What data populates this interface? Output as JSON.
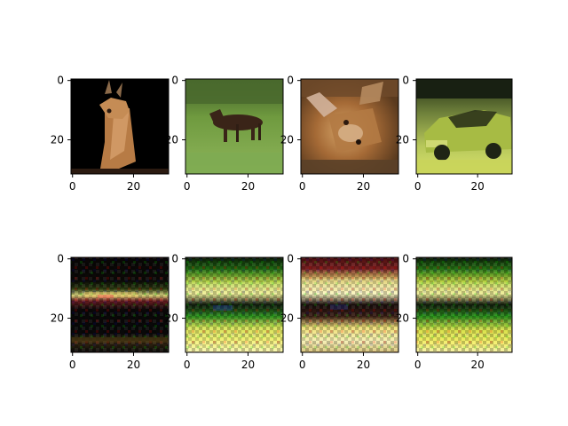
{
  "chart_data": [
    {
      "type": "heatmap",
      "panel": "top-1",
      "subject": "deer on black background",
      "xticks": [
        0,
        20
      ],
      "yticks": [
        0,
        20
      ],
      "xlim": [
        -0.5,
        31.5
      ],
      "ylim": [
        31.5,
        -0.5
      ],
      "grid": false
    },
    {
      "type": "heatmap",
      "panel": "top-2",
      "subject": "horse on grass",
      "xticks": [
        0,
        20
      ],
      "yticks": [
        0,
        20
      ],
      "xlim": [
        -0.5,
        31.5
      ],
      "ylim": [
        31.5,
        -0.5
      ],
      "grid": false
    },
    {
      "type": "heatmap",
      "panel": "top-3",
      "subject": "deer fawn close-up",
      "xticks": [
        0,
        20
      ],
      "yticks": [
        0,
        20
      ],
      "xlim": [
        -0.5,
        31.5
      ],
      "ylim": [
        31.5,
        -0.5
      ],
      "grid": false
    },
    {
      "type": "heatmap",
      "panel": "top-4",
      "subject": "green car",
      "xticks": [
        0,
        20
      ],
      "yticks": [
        0,
        20
      ],
      "xlim": [
        -0.5,
        31.5
      ],
      "ylim": [
        31.5,
        -0.5
      ],
      "grid": false
    },
    {
      "type": "heatmap",
      "panel": "bottom-1",
      "subject": "generated noise pattern (dark)",
      "xticks": [
        0,
        20
      ],
      "yticks": [
        0,
        20
      ],
      "xlim": [
        -0.5,
        31.5
      ],
      "ylim": [
        31.5,
        -0.5
      ],
      "grid": false
    },
    {
      "type": "heatmap",
      "panel": "bottom-2",
      "subject": "generated noise pattern (green/yellow)",
      "xticks": [
        0,
        20
      ],
      "yticks": [
        0,
        20
      ],
      "xlim": [
        -0.5,
        31.5
      ],
      "ylim": [
        31.5,
        -0.5
      ],
      "grid": false
    },
    {
      "type": "heatmap",
      "panel": "bottom-3",
      "subject": "generated noise pattern (red/yellow)",
      "xticks": [
        0,
        20
      ],
      "yticks": [
        0,
        20
      ],
      "xlim": [
        -0.5,
        31.5
      ],
      "ylim": [
        31.5,
        -0.5
      ],
      "grid": false
    },
    {
      "type": "heatmap",
      "panel": "bottom-4",
      "subject": "generated noise pattern (green/yellow)",
      "xticks": [
        0,
        20
      ],
      "yticks": [
        0,
        20
      ],
      "xlim": [
        -0.5,
        31.5
      ],
      "ylim": [
        31.5,
        -0.5
      ],
      "grid": false
    }
  ],
  "colors": {
    "frame": "#000000",
    "background": "#ffffff"
  }
}
